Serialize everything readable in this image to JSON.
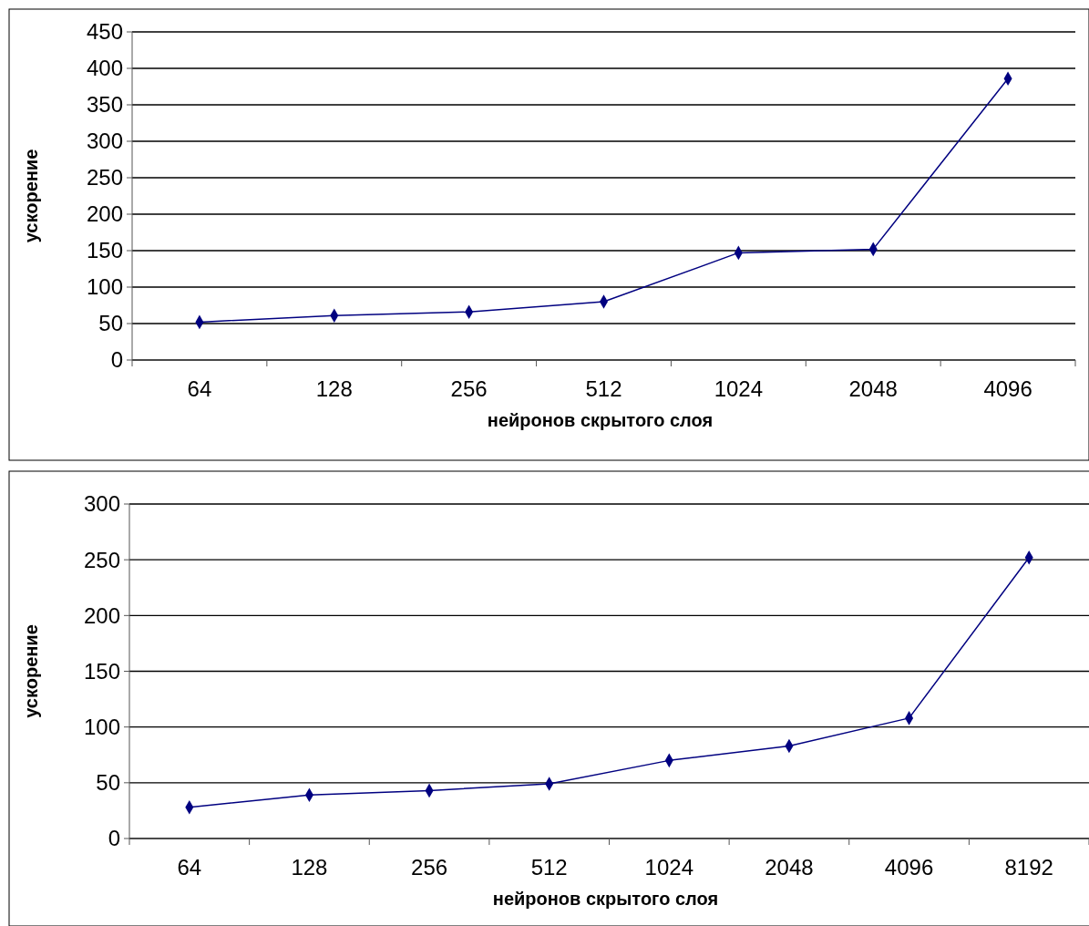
{
  "chart_data": [
    {
      "type": "line",
      "xlabel": "нейронов скрытого слоя",
      "ylabel": "ускорение",
      "categories": [
        "64",
        "128",
        "256",
        "512",
        "1024",
        "2048",
        "4096"
      ],
      "series": [
        {
          "color": "#000080",
          "values": [
            52,
            61,
            66,
            80,
            147,
            152,
            386
          ]
        }
      ],
      "ylim": [
        0,
        450
      ],
      "yticks": [
        0,
        50,
        100,
        150,
        200,
        250,
        300,
        350,
        400,
        450
      ],
      "grid": "y",
      "marker": "diamond",
      "line_style": "solid"
    },
    {
      "type": "line",
      "xlabel": "нейронов скрытого слоя",
      "ylabel": "ускорение",
      "categories": [
        "64",
        "128",
        "256",
        "512",
        "1024",
        "2048",
        "4096",
        "8192"
      ],
      "series": [
        {
          "color": "#000080",
          "values": [
            28,
            39,
            43,
            49,
            70,
            83,
            108,
            252
          ]
        }
      ],
      "ylim": [
        0,
        300
      ],
      "yticks": [
        0,
        50,
        100,
        150,
        200,
        250,
        300
      ],
      "grid": "y",
      "marker": "diamond",
      "line_style": "solid"
    }
  ]
}
